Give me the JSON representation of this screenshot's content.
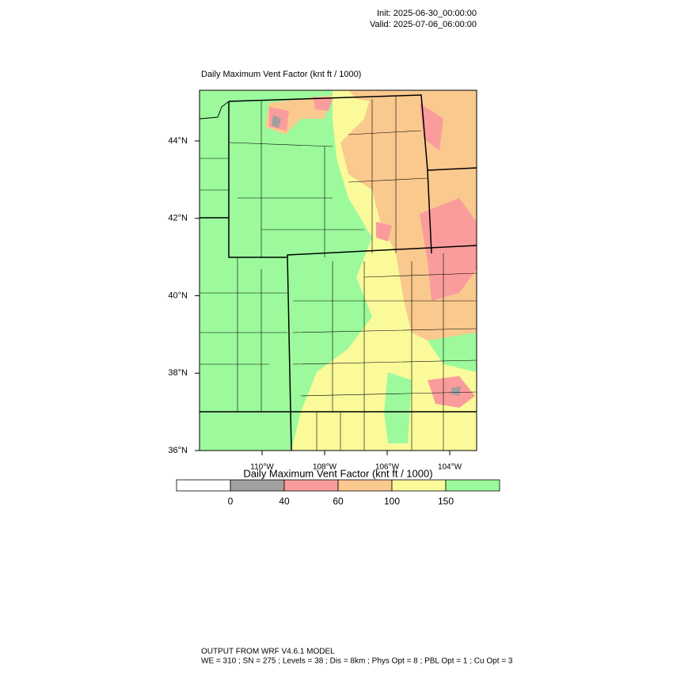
{
  "header": {
    "init": "Init: 2025-06-30_00:00:00",
    "valid": "Valid: 2025-07-06_06:00:00"
  },
  "map": {
    "title": "Daily Maximum Vent Factor   (knt ft / 1000)",
    "lat_labels": [
      "44°N",
      "42°N",
      "40°N",
      "38°N",
      "36°N"
    ],
    "lon_labels": [
      "110°W",
      "108°W",
      "106°W",
      "104°W"
    ]
  },
  "colorbar": {
    "title": "Daily Maximum Vent Factor  (knt ft / 1000)",
    "levels": [
      0,
      40,
      60,
      100,
      150
    ],
    "colors": [
      "#ffffff",
      "#a0a0a0",
      "#fa9c9c",
      "#fac98e",
      "#fafa9b",
      "#9cfa9c"
    ]
  },
  "footer": {
    "line1": "OUTPUT FROM WRF V4.6.1 MODEL",
    "line2": "WE = 310 ; SN = 275 ; Levels = 38 ; Dis = 8km ; Phys Opt = 8 ; PBL Opt = 1 ; Cu Opt = 3"
  }
}
